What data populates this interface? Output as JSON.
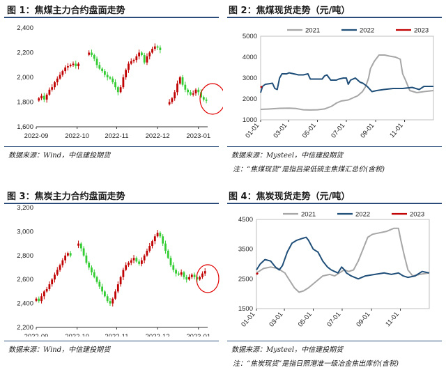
{
  "chart_data": [
    {
      "id": "fig1",
      "type": "candlestick",
      "title": "图 1：焦煤主力合约盘面走势",
      "x_tick_labels": [
        "2022-09",
        "2022-10",
        "2022-11",
        "2022-12",
        "2023-01"
      ],
      "y_tick_labels": [
        "1,600",
        "1,800",
        "2,000",
        "2,200",
        "2,400"
      ],
      "ylim": [
        1600,
        2400
      ],
      "x_range_days": [
        0,
        130
      ],
      "x_ticks_days": [
        0,
        31,
        61,
        92,
        123
      ],
      "close_series": [
        [
          2,
          1830
        ],
        [
          4,
          1850
        ],
        [
          6,
          1820
        ],
        [
          8,
          1860
        ],
        [
          10,
          1900
        ],
        [
          12,
          1920
        ],
        [
          14,
          1960
        ],
        [
          16,
          1990
        ],
        [
          18,
          2020
        ],
        [
          20,
          2050
        ],
        [
          22,
          2080
        ],
        [
          24,
          2090
        ],
        [
          26,
          2100
        ],
        [
          28,
          2110
        ],
        [
          30,
          2090
        ],
        [
          32,
          2110
        ],
        [
          40,
          2200
        ],
        [
          42,
          2180
        ],
        [
          44,
          2150
        ],
        [
          46,
          2100
        ],
        [
          48,
          2070
        ],
        [
          50,
          2050
        ],
        [
          52,
          2020
        ],
        [
          54,
          2000
        ],
        [
          56,
          1990
        ],
        [
          58,
          1960
        ],
        [
          60,
          1920
        ],
        [
          62,
          1880
        ],
        [
          64,
          1920
        ],
        [
          66,
          2000
        ],
        [
          68,
          2060
        ],
        [
          70,
          2110
        ],
        [
          72,
          2130
        ],
        [
          74,
          2140
        ],
        [
          76,
          2170
        ],
        [
          78,
          2200
        ],
        [
          80,
          2180
        ],
        [
          82,
          2120
        ],
        [
          84,
          2170
        ],
        [
          86,
          2200
        ],
        [
          88,
          2230
        ],
        [
          90,
          2250
        ],
        [
          92,
          2240
        ],
        [
          94,
          2220
        ],
        [
          101,
          1800
        ],
        [
          103,
          1830
        ],
        [
          105,
          1880
        ],
        [
          107,
          1950
        ],
        [
          109,
          2000
        ],
        [
          111,
          1940
        ],
        [
          113,
          1900
        ],
        [
          115,
          1880
        ],
        [
          117,
          1860
        ],
        [
          119,
          1870
        ],
        [
          121,
          1900
        ],
        [
          123,
          1880
        ],
        [
          125,
          1840
        ],
        [
          127,
          1820
        ],
        [
          129,
          1810
        ]
      ],
      "gap_after_days": [
        32,
        94
      ],
      "annotation": "red ellipse around latest bars (2023-01)"
    },
    {
      "id": "fig2",
      "type": "line",
      "title": "图 2：焦煤现货走势（元/吨）",
      "legend": [
        "2021",
        "2022",
        "2023"
      ],
      "colors": {
        "2021": "#a6a6a6",
        "2022": "#1f4e79",
        "2023": "#c00000"
      },
      "x_tick_labels": [
        "01-01",
        "03-01",
        "05-01",
        "07-01",
        "09-01",
        "11-01"
      ],
      "x_ticks_days": [
        0,
        59,
        120,
        181,
        243,
        304
      ],
      "x_range_days": [
        0,
        365
      ],
      "y_tick_labels": [
        "1000",
        "2000",
        "3000",
        "4000",
        "5000"
      ],
      "ylim": [
        1000,
        5000
      ],
      "series": [
        {
          "name": "2021",
          "points": [
            [
              0,
              1500
            ],
            [
              20,
              1520
            ],
            [
              40,
              1550
            ],
            [
              60,
              1560
            ],
            [
              75,
              1540
            ],
            [
              90,
              1480
            ],
            [
              105,
              1470
            ],
            [
              120,
              1480
            ],
            [
              135,
              1520
            ],
            [
              150,
              1650
            ],
            [
              160,
              1800
            ],
            [
              170,
              1900
            ],
            [
              185,
              1950
            ],
            [
              195,
              2050
            ],
            [
              205,
              2150
            ],
            [
              215,
              2350
            ],
            [
              222,
              2600
            ],
            [
              228,
              3000
            ],
            [
              232,
              3450
            ],
            [
              240,
              3800
            ],
            [
              250,
              4100
            ],
            [
              262,
              4100
            ],
            [
              272,
              4050
            ],
            [
              285,
              4000
            ],
            [
              295,
              3900
            ],
            [
              300,
              3200
            ],
            [
              306,
              2900
            ],
            [
              315,
              2400
            ],
            [
              330,
              2300
            ],
            [
              345,
              2350
            ],
            [
              365,
              2400
            ]
          ]
        },
        {
          "name": "2022",
          "points": [
            [
              0,
              2300
            ],
            [
              4,
              2600
            ],
            [
              10,
              2700
            ],
            [
              25,
              2750
            ],
            [
              30,
              2500
            ],
            [
              35,
              2450
            ],
            [
              40,
              3000
            ],
            [
              45,
              3200
            ],
            [
              55,
              3200
            ],
            [
              60,
              3250
            ],
            [
              70,
              3200
            ],
            [
              80,
              3150
            ],
            [
              90,
              3150
            ],
            [
              100,
              3200
            ],
            [
              105,
              2950
            ],
            [
              115,
              2950
            ],
            [
              130,
              2950
            ],
            [
              135,
              3100
            ],
            [
              140,
              3150
            ],
            [
              148,
              2900
            ],
            [
              160,
              2900
            ],
            [
              165,
              2950
            ],
            [
              175,
              3000
            ],
            [
              181,
              3000
            ],
            [
              185,
              2700
            ],
            [
              190,
              2900
            ],
            [
              200,
              3000
            ],
            [
              210,
              2800
            ],
            [
              216,
              2750
            ],
            [
              225,
              2600
            ],
            [
              235,
              2350
            ],
            [
              245,
              2400
            ],
            [
              260,
              2450
            ],
            [
              280,
              2500
            ],
            [
              300,
              2500
            ],
            [
              320,
              2550
            ],
            [
              335,
              2450
            ],
            [
              345,
              2600
            ],
            [
              365,
              2600
            ]
          ]
        },
        {
          "name": "2023",
          "points": [
            [
              0,
              2600
            ],
            [
              3,
              2550
            ]
          ]
        }
      ]
    },
    {
      "id": "fig3",
      "type": "candlestick",
      "title": "图 3：焦炭主力合约盘面走势",
      "x_tick_labels": [
        "2022-09",
        "2022-10",
        "2022-11",
        "2022-12",
        "2023-01"
      ],
      "y_tick_labels": [
        "2,200",
        "2,400",
        "2,600",
        "2,800",
        "3,000",
        "3,200"
      ],
      "ylim": [
        2200,
        3200
      ],
      "x_range_days": [
        0,
        130
      ],
      "x_ticks_days": [
        0,
        31,
        61,
        92,
        123
      ],
      "close_series": [
        [
          0,
          2440
        ],
        [
          2,
          2420
        ],
        [
          4,
          2460
        ],
        [
          6,
          2500
        ],
        [
          8,
          2520
        ],
        [
          10,
          2560
        ],
        [
          12,
          2600
        ],
        [
          14,
          2640
        ],
        [
          16,
          2680
        ],
        [
          18,
          2720
        ],
        [
          20,
          2760
        ],
        [
          22,
          2800
        ],
        [
          24,
          2820
        ],
        [
          26,
          2800
        ],
        [
          32,
          2900
        ],
        [
          34,
          2860
        ],
        [
          36,
          2800
        ],
        [
          38,
          2740
        ],
        [
          40,
          2700
        ],
        [
          42,
          2660
        ],
        [
          44,
          2620
        ],
        [
          46,
          2580
        ],
        [
          48,
          2540
        ],
        [
          50,
          2500
        ],
        [
          52,
          2460
        ],
        [
          54,
          2420
        ],
        [
          56,
          2400
        ],
        [
          58,
          2440
        ],
        [
          60,
          2500
        ],
        [
          62,
          2560
        ],
        [
          64,
          2620
        ],
        [
          66,
          2680
        ],
        [
          68,
          2720
        ],
        [
          70,
          2740
        ],
        [
          72,
          2760
        ],
        [
          74,
          2780
        ],
        [
          76,
          2750
        ],
        [
          78,
          2730
        ],
        [
          80,
          2760
        ],
        [
          82,
          2800
        ],
        [
          84,
          2840
        ],
        [
          86,
          2880
        ],
        [
          88,
          2920
        ],
        [
          90,
          2960
        ],
        [
          92,
          2990
        ],
        [
          94,
          2960
        ],
        [
          96,
          2900
        ],
        [
          98,
          2840
        ],
        [
          100,
          2780
        ],
        [
          102,
          2720
        ],
        [
          104,
          2680
        ],
        [
          106,
          2650
        ],
        [
          108,
          2640
        ],
        [
          110,
          2660
        ],
        [
          112,
          2620
        ],
        [
          114,
          2600
        ],
        [
          116,
          2620
        ],
        [
          118,
          2640
        ],
        [
          120,
          2620
        ],
        [
          122,
          2600
        ],
        [
          124,
          2620
        ],
        [
          126,
          2650
        ],
        [
          128,
          2670
        ]
      ],
      "gap_after_days": [
        26
      ],
      "annotation": "red ellipse around latest bars (2023-01)"
    },
    {
      "id": "fig4",
      "type": "line",
      "title": "图 4：焦炭现货走势（元/吨）",
      "legend": [
        "2021",
        "2022",
        "2023"
      ],
      "colors": {
        "2021": "#a6a6a6",
        "2022": "#1f4e79",
        "2023": "#c00000"
      },
      "x_tick_labels": [
        "01-01",
        "03-01",
        "05-01",
        "07-01",
        "09-01",
        "11-01"
      ],
      "x_ticks_days": [
        0,
        59,
        120,
        181,
        243,
        304
      ],
      "x_range_days": [
        0,
        365
      ],
      "y_tick_labels": [
        "1500",
        "2500",
        "3500",
        "4500"
      ],
      "ylim": [
        1500,
        4500
      ],
      "series": [
        {
          "name": "2021",
          "points": [
            [
              0,
              2700
            ],
            [
              15,
              2850
            ],
            [
              30,
              2900
            ],
            [
              45,
              2850
            ],
            [
              60,
              2700
            ],
            [
              70,
              2450
            ],
            [
              80,
              2200
            ],
            [
              90,
              2050
            ],
            [
              100,
              2100
            ],
            [
              110,
              2200
            ],
            [
              125,
              2400
            ],
            [
              140,
              2600
            ],
            [
              155,
              2650
            ],
            [
              165,
              2600
            ],
            [
              175,
              2700
            ],
            [
              185,
              2800
            ],
            [
              195,
              2750
            ],
            [
              205,
              2800
            ],
            [
              215,
              3100
            ],
            [
              225,
              3500
            ],
            [
              235,
              3900
            ],
            [
              245,
              4000
            ],
            [
              260,
              4050
            ],
            [
              275,
              4100
            ],
            [
              290,
              4200
            ],
            [
              300,
              4200
            ],
            [
              305,
              3800
            ],
            [
              312,
              3300
            ],
            [
              320,
              2800
            ],
            [
              330,
              2600
            ],
            [
              345,
              2650
            ],
            [
              365,
              2700
            ]
          ]
        },
        {
          "name": "2022",
          "points": [
            [
              0,
              2800
            ],
            [
              8,
              3000
            ],
            [
              18,
              3150
            ],
            [
              30,
              3100
            ],
            [
              40,
              2900
            ],
            [
              48,
              2800
            ],
            [
              55,
              2950
            ],
            [
              65,
              3400
            ],
            [
              75,
              3700
            ],
            [
              85,
              3800
            ],
            [
              95,
              3850
            ],
            [
              105,
              3900
            ],
            [
              110,
              3800
            ],
            [
              120,
              3500
            ],
            [
              130,
              3400
            ],
            [
              140,
              3100
            ],
            [
              150,
              2900
            ],
            [
              158,
              2800
            ],
            [
              165,
              2750
            ],
            [
              172,
              2700
            ],
            [
              180,
              2900
            ],
            [
              186,
              2800
            ],
            [
              190,
              2700
            ],
            [
              200,
              2600
            ],
            [
              215,
              2500
            ],
            [
              230,
              2600
            ],
            [
              250,
              2650
            ],
            [
              270,
              2700
            ],
            [
              285,
              2650
            ],
            [
              300,
              2700
            ],
            [
              310,
              2600
            ],
            [
              320,
              2550
            ],
            [
              335,
              2600
            ],
            [
              350,
              2750
            ],
            [
              365,
              2700
            ]
          ]
        },
        {
          "name": "2023",
          "points": [
            [
              0,
              2650
            ],
            [
              3,
              2700
            ]
          ]
        }
      ]
    }
  ],
  "sources": {
    "fig1": "数据来源：Wind，中信建投期货",
    "fig2": "数据来源：Mysteel，中信建投期货",
    "fig2_note": "注：“焦煤现货”是指吕梁低硫主焦煤汇总价(含税)",
    "fig3": "数据来源：Wind，中信建投期货",
    "fig4": "数据来源：Mysteel，中信建投期货",
    "fig4_note": "注：“焦炭现货”是指日照港准一级冶金焦出库价(含税)"
  },
  "colors": {
    "up": "#c00000",
    "down": "#33cc33",
    "border": "#2a4c7a"
  }
}
